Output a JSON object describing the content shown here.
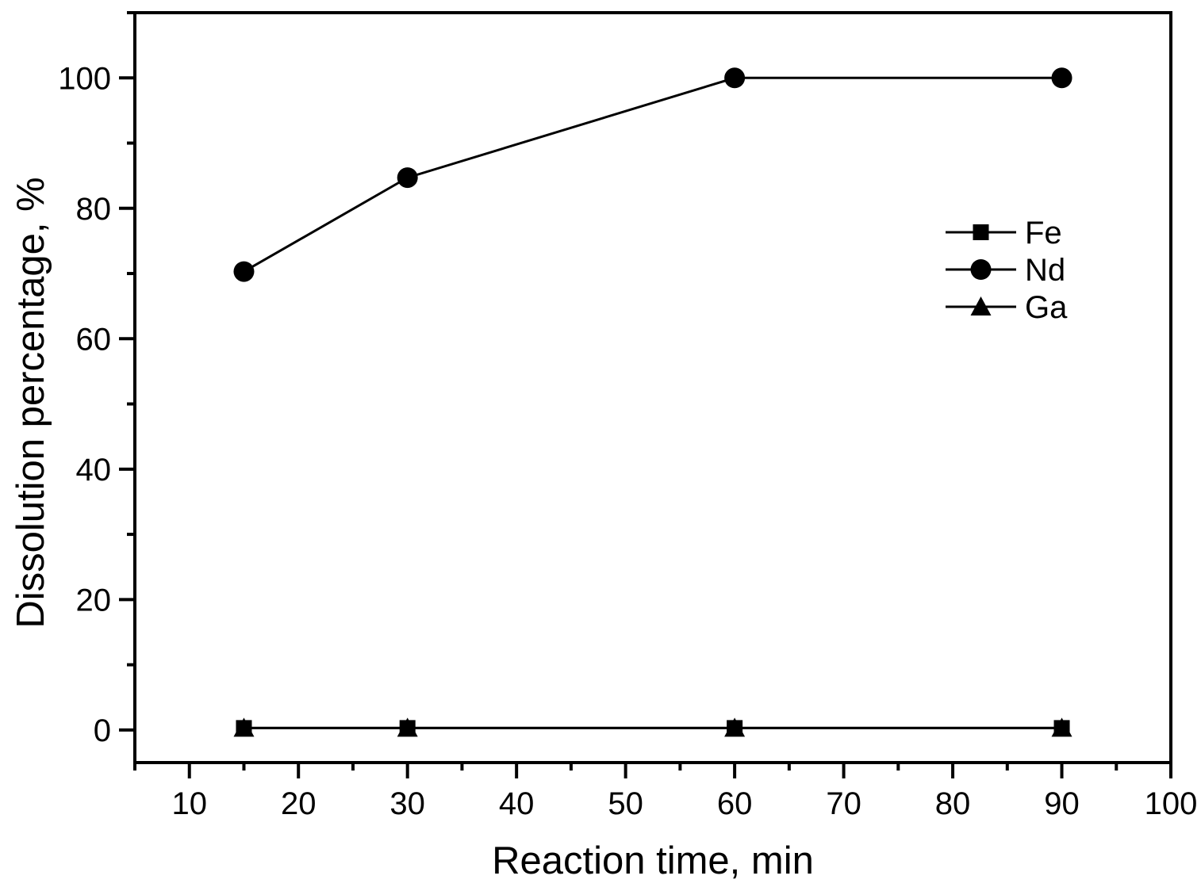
{
  "chart_data": {
    "type": "line",
    "title": "",
    "xlabel": "Reaction time, min",
    "ylabel": "Dissolution percentage, %",
    "x": [
      15,
      30,
      60,
      90
    ],
    "series": [
      {
        "name": "Fe",
        "marker": "square",
        "color": "#000000",
        "values": [
          0.3,
          0.3,
          0.3,
          0.3
        ]
      },
      {
        "name": "Nd",
        "marker": "circle",
        "color": "#000000",
        "values": [
          70.3,
          84.7,
          100,
          100
        ]
      },
      {
        "name": "Ga",
        "marker": "triangle",
        "color": "#000000",
        "values": [
          0.3,
          0.3,
          0.3,
          0.3
        ]
      }
    ],
    "xlim": [
      5,
      100
    ],
    "ylim": [
      -5,
      110
    ],
    "x_ticks": [
      10,
      20,
      30,
      40,
      50,
      60,
      70,
      80,
      90,
      100
    ],
    "y_ticks": [
      0,
      20,
      40,
      60,
      80,
      100
    ],
    "x_minor_step": 5,
    "y_minor_step": 10,
    "grid": false,
    "legend_position": "upper-right-inside",
    "axis_color": "#000000",
    "background": "#ffffff"
  }
}
